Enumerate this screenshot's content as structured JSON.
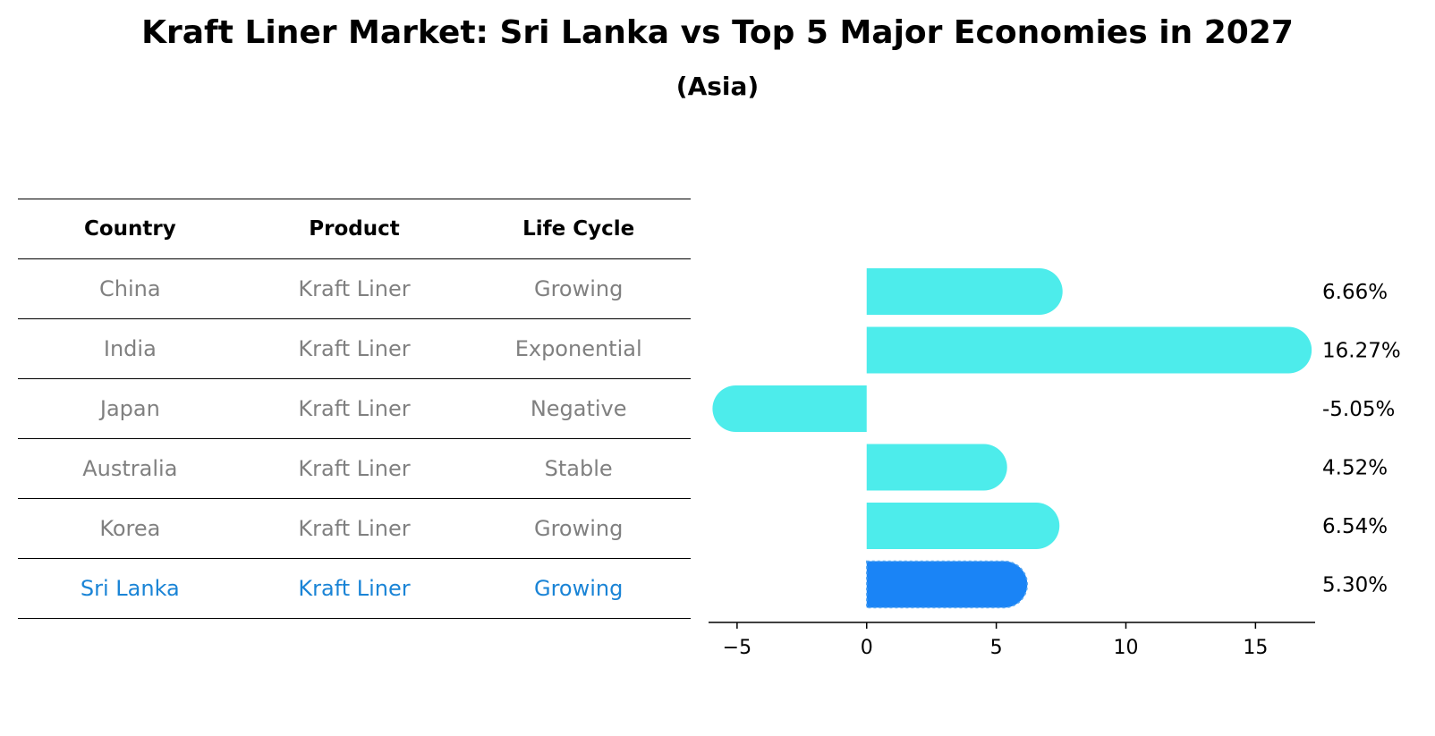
{
  "title": "Kraft Liner Market: Sri Lanka vs Top 5 Major Economies in 2027",
  "subtitle": "(Asia)",
  "table": {
    "headers": [
      "Country",
      "Product",
      "Life Cycle"
    ],
    "rows": [
      {
        "country": "China",
        "product": "Kraft Liner",
        "life_cycle": "Growing"
      },
      {
        "country": "India",
        "product": "Kraft Liner",
        "life_cycle": "Exponential"
      },
      {
        "country": "Japan",
        "product": "Kraft Liner",
        "life_cycle": "Negative"
      },
      {
        "country": "Australia",
        "product": "Kraft Liner",
        "life_cycle": "Stable"
      },
      {
        "country": "Korea",
        "product": "Kraft Liner",
        "life_cycle": "Growing"
      },
      {
        "country": "Sri Lanka",
        "product": "Kraft Liner",
        "life_cycle": "Growing"
      }
    ],
    "highlight_row": 5,
    "highlight_color": "#1a84d6",
    "text_color": "#808080"
  },
  "chart_data": {
    "type": "bar",
    "orientation": "horizontal",
    "categories": [
      "China",
      "India",
      "Japan",
      "Australia",
      "Korea",
      "Sri Lanka"
    ],
    "values": [
      6.66,
      16.27,
      -5.05,
      4.52,
      6.54,
      5.3
    ],
    "value_labels": [
      "6.66%",
      "16.27%",
      "-5.05%",
      "4.52%",
      "6.54%",
      "5.30%"
    ],
    "xlim": [
      -6.1,
      17.3
    ],
    "xticks": [
      -5,
      0,
      5,
      10,
      15
    ],
    "xtick_labels": [
      "−5",
      "0",
      "5",
      "10",
      "15"
    ],
    "bar_color": "#4deceb",
    "highlight_color": "#1a84f6",
    "highlight_index": 5,
    "grid": false
  }
}
